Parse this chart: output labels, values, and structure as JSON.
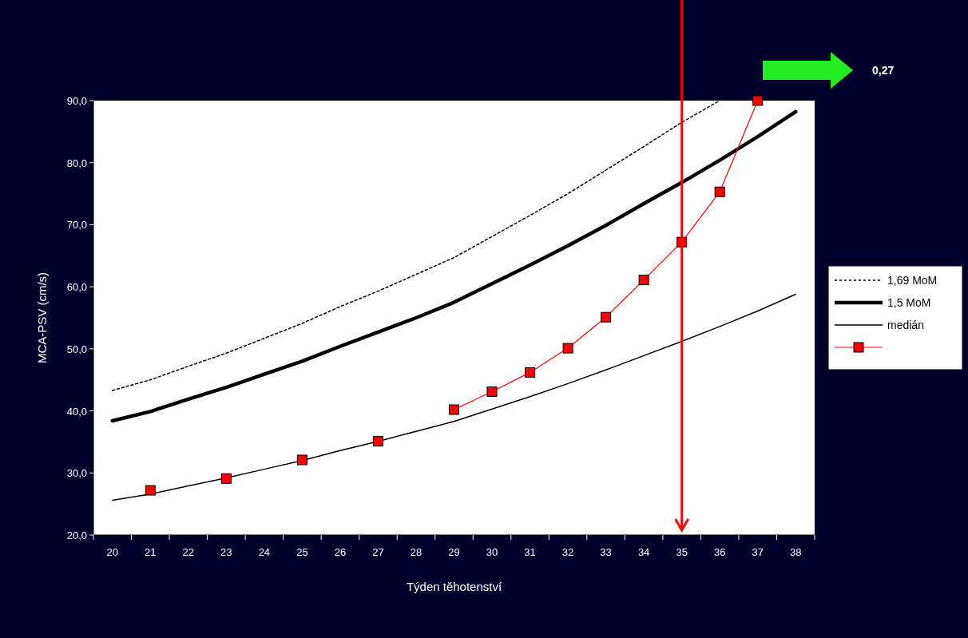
{
  "chart_data": {
    "type": "line",
    "xlabel": "Týden těhotenství",
    "ylabel": "MCA-PSV (cm/s)",
    "categories": [
      "20",
      "21",
      "22",
      "23",
      "24",
      "25",
      "26",
      "27",
      "28",
      "29",
      "30",
      "31",
      "32",
      "33",
      "34",
      "35",
      "36",
      "37",
      "38"
    ],
    "series": [
      {
        "name": "1,69 MoM",
        "color": "#000000",
        "line_style": "dotted",
        "marker": "none",
        "values": [
          43.3,
          45.0,
          47.2,
          49.3,
          51.7,
          54.1,
          56.8,
          59.3,
          62.0,
          64.7,
          68.1,
          71.5,
          75.0,
          78.8,
          82.6,
          86.5,
          90.0,
          null,
          null
        ]
      },
      {
        "name": "1,5 MoM",
        "color": "#000000",
        "line_style": "solid",
        "marker": "none",
        "values": [
          38.4,
          39.9,
          41.9,
          43.8,
          45.9,
          48.0,
          50.4,
          52.7,
          55.0,
          57.5,
          60.5,
          63.5,
          66.6,
          69.9,
          73.4,
          76.8,
          80.4,
          84.2,
          88.2
        ]
      },
      {
        "name": "medián",
        "color": "#000000",
        "line_style": "solid",
        "marker": "none",
        "values": [
          25.6,
          26.6,
          27.9,
          29.2,
          30.6,
          32.0,
          33.6,
          35.1,
          36.7,
          38.3,
          40.3,
          42.3,
          44.4,
          46.6,
          48.9,
          51.2,
          53.6,
          56.1,
          58.8
        ]
      },
      {
        "color": "#ff0000",
        "line_style": "solid",
        "marker": "square",
        "values": [
          null,
          27.2,
          null,
          29.1,
          null,
          32.1,
          null,
          35.1,
          null,
          40.2,
          43.1,
          46.2,
          50.1,
          55.1,
          61.1,
          67.2,
          75.3,
          90.0,
          null
        ]
      }
    ],
    "ylim": [
      20,
      90
    ],
    "yticks": [
      {
        "value": 20,
        "label": "20,0"
      },
      {
        "value": 30,
        "label": "30,0"
      },
      {
        "value": 40,
        "label": "40,0"
      },
      {
        "value": 50,
        "label": "50,0"
      },
      {
        "value": 60,
        "label": "60,0"
      },
      {
        "value": 70,
        "label": "70,0"
      },
      {
        "value": 80,
        "label": "80,0"
      },
      {
        "value": 90,
        "label": "90,0"
      }
    ],
    "ref_lines": [
      {
        "axis": "x",
        "value": "35",
        "color": "#ff0000"
      }
    ],
    "annotations": [
      "0,27"
    ],
    "legend": "right",
    "grid": false
  }
}
